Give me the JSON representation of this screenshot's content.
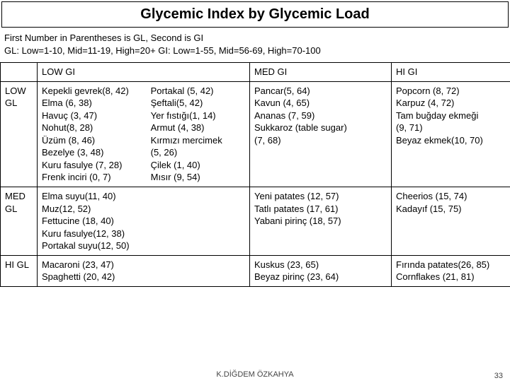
{
  "title": "Glycemic Index by Glycemic Load",
  "subtitle_line1": "First Number in Parentheses is GL, Second is GI",
  "subtitle_line2": "GL: Low=1-10, Mid=11-19, High=20+ GI: Low=1-55, Mid=56-69, High=70-100",
  "headers": {
    "row_label_blank": "",
    "low_gi": "LOW GI",
    "med_gi": "MED GI",
    "hi_gi": "HI GI"
  },
  "rows": {
    "low_gl": {
      "label_l1": "LOW",
      "label_l2": "GL",
      "low_gi_col1": [
        "Kepekli gevrek(8, 42)",
        "Elma  (6, 38)",
        "Havuç  (3, 47)",
        "Nohut(8, 28)",
        "Üzüm (8, 46)",
        "Bezelye (3, 48)",
        "Kuru fasulye (7, 28)",
        "Frenk inciri (0, 7)"
      ],
      "low_gi_col2": [
        "Portakal  (5, 42)",
        "Şeftali(5, 42)",
        "Yer fıstığı(1, 14)",
        "Armut (4, 38)",
        "Kırmızı mercimek",
        "(5, 26)",
        "Çilek  (1, 40)",
        "Mısır (9, 54)"
      ],
      "med_gi": [
        "Pancar(5, 64)",
        "Kavun (4, 65)",
        "Ananas (7, 59)",
        "Sukkaroz (table sugar)",
        "(7, 68)"
      ],
      "hi_gi": [
        "Popcorn (8, 72)",
        "Karpuz (4, 72)",
        "Tam buğday ekmeği",
        "(9, 71)",
        "Beyaz ekmek(10, 70)"
      ]
    },
    "med_gl": {
      "label_l1": "MED",
      "label_l2": "GL",
      "low_gi": [
        "Elma suyu(11, 40)",
        "Muz(12, 52)",
        "Fettucine (18, 40)",
        "Kuru fasulye(12, 38)",
        "Portakal suyu(12, 50)"
      ],
      "med_gi": [
        "Yeni patates (12, 57)",
        "Tatlı patates (17, 61)",
        "Yabani pirinç (18, 57)"
      ],
      "hi_gi": [
        "Cheerios (15, 74)",
        "Kadayıf (15, 75)"
      ]
    },
    "hi_gl": {
      "label": "HI GL",
      "low_gi": [
        "Macaroni (23, 47)",
        "Spaghetti (20, 42)"
      ],
      "med_gi": [
        "Kuskus (23, 65)",
        "Beyaz pirinç (23, 64)"
      ],
      "hi_gi": [
        "Fırında patates(26, 85)",
        "Cornflakes (21, 81)"
      ]
    }
  },
  "footer": "K.DİĞDEM ÖZKAHYA",
  "page_number": "33",
  "colors": {
    "border": "#000000",
    "background": "#ffffff",
    "text": "#000000",
    "footer_text": "#444444"
  },
  "fonts": {
    "title_size_pt": 20,
    "body_size_pt": 13,
    "footer_size_pt": 11
  }
}
